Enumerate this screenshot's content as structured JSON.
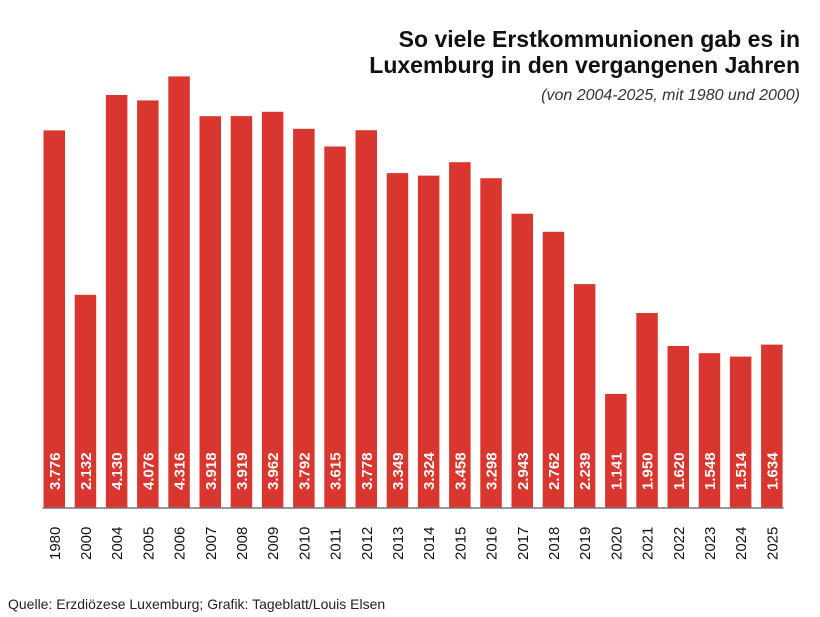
{
  "chart_data": {
    "type": "bar",
    "title": "So viele Erstkommunionen gab es in Luxemburg in den vergangenen Jahren",
    "subtitle": "(von 2004-2025, mit 1980 und 2000)",
    "categories": [
      "1980",
      "2000",
      "2004",
      "2005",
      "2006",
      "2007",
      "2008",
      "2009",
      "2010",
      "2011",
      "2012",
      "2013",
      "2014",
      "2015",
      "2016",
      "2017",
      "2018",
      "2019",
      "2020",
      "2021",
      "2022",
      "2023",
      "2024",
      "2025"
    ],
    "values": [
      3776,
      2132,
      4130,
      4076,
      4316,
      3918,
      3919,
      3962,
      3792,
      3615,
      3778,
      3349,
      3324,
      3458,
      3298,
      2943,
      2762,
      2239,
      1141,
      1950,
      1620,
      1548,
      1514,
      1634
    ],
    "data_labels": [
      "3.776",
      "2.132",
      "4.130",
      "4.076",
      "4.316",
      "3.918",
      "3.919",
      "3.962",
      "3.792",
      "3.615",
      "3.778",
      "3.349",
      "3.324",
      "3.458",
      "3.298",
      "2.943",
      "2.762",
      "2.239",
      "1.141",
      "1.950",
      "1.620",
      "1.548",
      "1.514",
      "1.634"
    ],
    "xlabel": "",
    "ylabel": "",
    "ylim": [
      0,
      4320
    ],
    "grid": false,
    "bar_color": "#d93630",
    "label_color": "#ffffff"
  },
  "source": "Quelle: Erzdiözese Luxemburg; Grafik: Tageblatt/Louis Elsen"
}
